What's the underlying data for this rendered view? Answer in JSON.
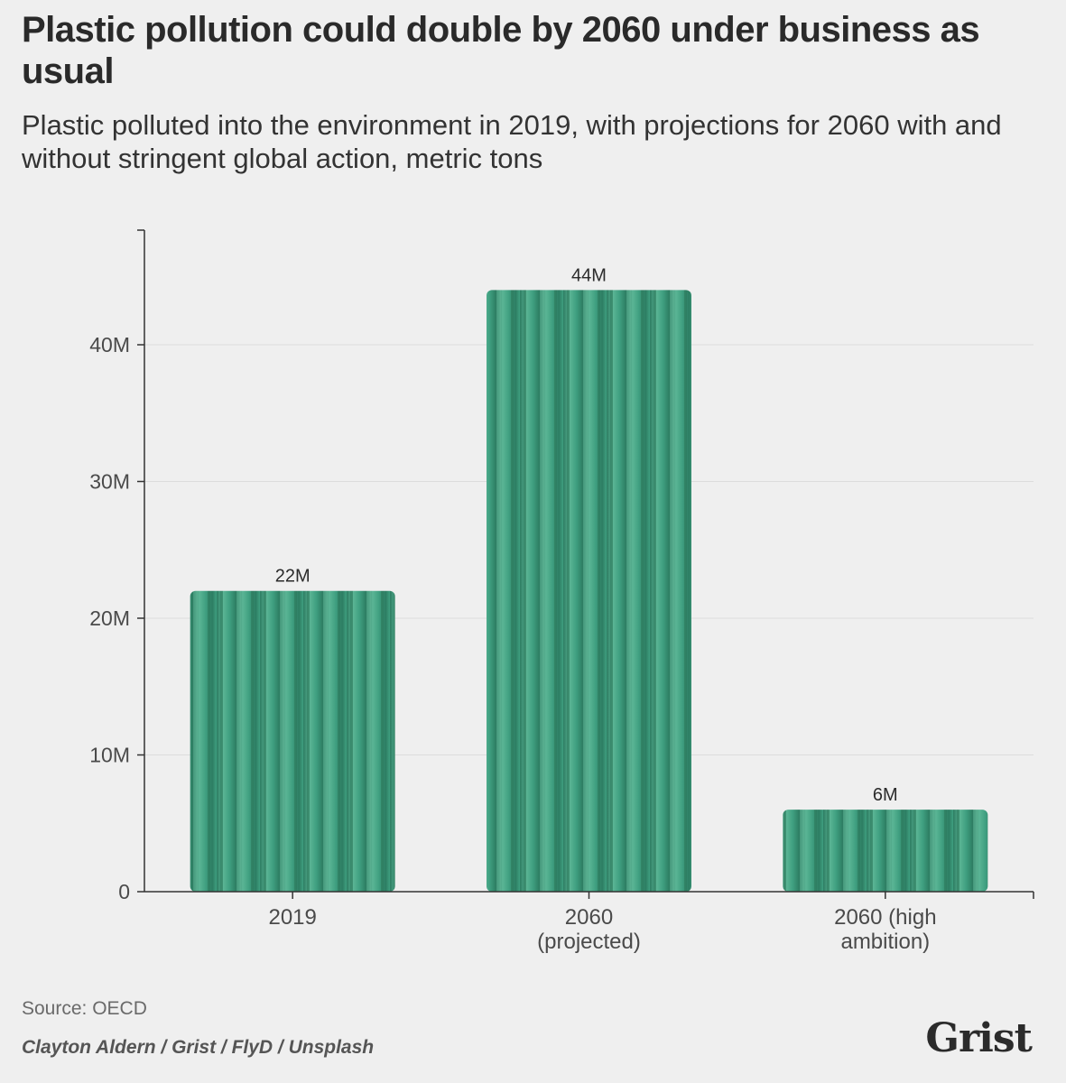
{
  "chart_data": {
    "type": "bar",
    "title": "Plastic pollution could double by 2060 under business as usual",
    "subtitle": "Plastic polluted into the environment in 2019, with projections for 2060 with and without stringent global action, metric tons",
    "categories": [
      "2019",
      "2060 (projected)",
      "2060 (high ambition)"
    ],
    "category_lines": [
      [
        "2019"
      ],
      [
        "2060",
        "(projected)"
      ],
      [
        "2060 (high",
        "ambition)"
      ]
    ],
    "values": [
      22000000,
      44000000,
      6000000
    ],
    "data_labels": [
      "22M",
      "44M",
      "6M"
    ],
    "xlabel": "",
    "ylabel": "",
    "ylim": [
      0,
      48000000
    ],
    "yticks": [
      0,
      10000000,
      20000000,
      30000000,
      40000000
    ],
    "ytick_labels": [
      "0",
      "10M",
      "20M",
      "30M",
      "40M"
    ],
    "grid": true,
    "colors": {
      "bar": "#3f9f80",
      "bar_dark": "#2d7d62",
      "bar_light": "#5bb595",
      "grid": "#dcdcdc",
      "axis": "#333333",
      "tick_text": "#4a4a4a"
    }
  },
  "footer": {
    "source": "Source: OECD",
    "credit": "Clayton Aldern / Grist / FlyD / Unsplash",
    "logo": "Grist"
  }
}
